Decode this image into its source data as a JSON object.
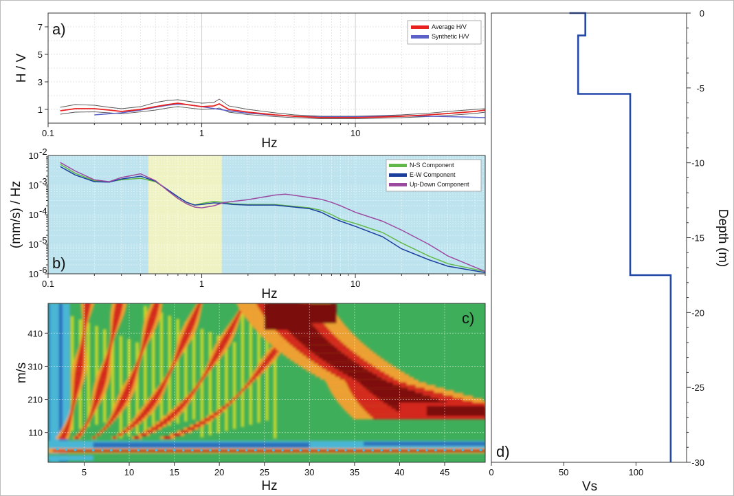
{
  "chart_data": [
    {
      "id": "a",
      "type": "line",
      "panel_label": "a)",
      "xlabel": "Hz",
      "ylabel": "H / V",
      "xscale": "log",
      "xlim": [
        0.1,
        70
      ],
      "ylim": [
        0,
        8
      ],
      "x_tick_labels": [
        "0.1",
        "1",
        "10"
      ],
      "x_tick_values": [
        0.1,
        1,
        10
      ],
      "y_tick_labels": [
        "1",
        "3",
        "5",
        "7"
      ],
      "y_tick_values": [
        1,
        3,
        5,
        7
      ],
      "grid": true,
      "legend_position": "top-right",
      "series": [
        {
          "name": "Average H/V",
          "color": "#e8201e",
          "x": [
            0.12,
            0.15,
            0.2,
            0.25,
            0.3,
            0.4,
            0.5,
            0.6,
            0.7,
            0.8,
            1.0,
            1.2,
            1.3,
            1.5,
            2.0,
            3.0,
            4.0,
            6.0,
            8.0,
            10,
            15,
            20,
            30,
            40,
            60,
            70
          ],
          "y": [
            0.9,
            1.05,
            1.05,
            0.95,
            0.85,
            1.0,
            1.2,
            1.35,
            1.45,
            1.35,
            1.2,
            1.25,
            1.4,
            1.0,
            0.8,
            0.6,
            0.5,
            0.4,
            0.4,
            0.4,
            0.45,
            0.5,
            0.6,
            0.7,
            0.85,
            0.95
          ]
        },
        {
          "name": "",
          "color": "#555555",
          "x": [
            0.12,
            0.15,
            0.2,
            0.25,
            0.3,
            0.4,
            0.5,
            0.6,
            0.7,
            0.8,
            1.0,
            1.2,
            1.3,
            1.5,
            2.0,
            3.0,
            4.0,
            6.0,
            8.0,
            10,
            15,
            20,
            30,
            40,
            60,
            70
          ],
          "y": [
            1.15,
            1.35,
            1.3,
            1.15,
            1.05,
            1.2,
            1.5,
            1.65,
            1.7,
            1.6,
            1.45,
            1.5,
            1.75,
            1.25,
            1.0,
            0.75,
            0.6,
            0.5,
            0.5,
            0.5,
            0.55,
            0.6,
            0.72,
            0.85,
            1.0,
            1.05
          ]
        },
        {
          "name": "",
          "color": "#555555",
          "x": [
            0.12,
            0.15,
            0.2,
            0.25,
            0.3,
            0.4,
            0.5,
            0.6,
            0.7,
            0.8,
            1.0,
            1.2,
            1.3,
            1.5,
            2.0,
            3.0,
            4.0,
            6.0,
            8.0,
            10,
            15,
            20,
            30,
            40,
            60,
            70
          ],
          "y": [
            0.65,
            0.8,
            0.82,
            0.75,
            0.68,
            0.82,
            0.95,
            1.1,
            1.2,
            1.12,
            1.0,
            1.02,
            1.1,
            0.8,
            0.62,
            0.48,
            0.4,
            0.32,
            0.32,
            0.32,
            0.36,
            0.4,
            0.48,
            0.56,
            0.7,
            0.8
          ]
        },
        {
          "name": "Synthetic H/V",
          "color": "#5a62c8",
          "x": [
            0.2,
            0.3,
            0.4,
            0.5,
            0.6,
            0.7,
            0.8,
            1.0,
            1.3,
            1.6,
            2.0,
            3.0,
            4.0,
            6.0,
            10,
            15,
            20,
            30,
            50,
            70
          ],
          "y": [
            0.6,
            0.75,
            0.95,
            1.15,
            1.3,
            1.38,
            1.35,
            1.2,
            1.0,
            0.85,
            0.72,
            0.58,
            0.5,
            0.45,
            0.46,
            0.5,
            0.52,
            0.5,
            0.45,
            0.4
          ]
        }
      ]
    },
    {
      "id": "b",
      "type": "line",
      "panel_label": "b)",
      "xlabel": "Hz",
      "ylabel": "(mm/s) / Hz",
      "xscale": "log",
      "yscale": "log",
      "xlim": [
        0.1,
        70
      ],
      "ylim": [
        1e-06,
        0.01
      ],
      "x_tick_labels": [
        "0.1",
        "1",
        "10"
      ],
      "x_tick_values": [
        0.1,
        1,
        10
      ],
      "y_tick_labels": [
        {
          "base": "10",
          "exp": "-6"
        },
        {
          "base": "10",
          "exp": "-5"
        },
        {
          "base": "10",
          "exp": "-4"
        },
        {
          "base": "10",
          "exp": "-3"
        },
        {
          "base": "10",
          "exp": "-2"
        }
      ],
      "y_tick_values": [
        1e-06,
        1e-05,
        0.0001,
        0.001,
        0.01
      ],
      "background_color": "#bde3ef",
      "highlight_band": {
        "x": [
          0.45,
          1.35
        ],
        "color": "#eff3c4"
      },
      "grid": true,
      "legend_position": "top-right",
      "series": [
        {
          "name": "N-S Component",
          "color": "#62b84a",
          "x": [
            0.12,
            0.15,
            0.2,
            0.25,
            0.3,
            0.4,
            0.5,
            0.6,
            0.7,
            0.8,
            0.9,
            1.0,
            1.2,
            1.4,
            1.6,
            2.0,
            3.0,
            4.0,
            5.0,
            6.0,
            7.0,
            8.0,
            10,
            15,
            20,
            30,
            40,
            70
          ],
          "y": [
            0.005,
            0.0025,
            0.0014,
            0.0013,
            0.0015,
            0.0017,
            0.0013,
            0.0007,
            0.0004,
            0.00026,
            0.00021,
            0.00024,
            0.00028,
            0.00026,
            0.00023,
            0.00022,
            0.00022,
            0.00019,
            0.00017,
            0.00014,
            0.0001,
            7e-05,
            5e-05,
            2.5e-05,
            1.1e-05,
            4e-06,
            2.2e-06,
            1.2e-06
          ]
        },
        {
          "name": "E-W Component",
          "color": "#1b3e9c",
          "x": [
            0.12,
            0.15,
            0.2,
            0.25,
            0.3,
            0.4,
            0.5,
            0.6,
            0.7,
            0.8,
            0.9,
            1.0,
            1.2,
            1.4,
            1.6,
            2.0,
            3.0,
            4.0,
            5.0,
            6.0,
            7.0,
            8.0,
            10,
            15,
            20,
            30,
            40,
            70
          ],
          "y": [
            0.0042,
            0.0022,
            0.0013,
            0.00125,
            0.0016,
            0.002,
            0.00135,
            0.0007,
            0.0004,
            0.00026,
            0.00021,
            0.00022,
            0.00025,
            0.00024,
            0.00022,
            0.00021,
            0.00021,
            0.00018,
            0.00016,
            0.00012,
            8e-05,
            6e-05,
            4e-05,
            1.8e-05,
            7e-06,
            3e-06,
            1.8e-06,
            1.1e-06
          ]
        },
        {
          "name": "Up-Down Component",
          "color": "#9b4aa0",
          "x": [
            0.12,
            0.15,
            0.2,
            0.25,
            0.3,
            0.4,
            0.5,
            0.6,
            0.7,
            0.8,
            0.9,
            1.0,
            1.2,
            1.4,
            1.6,
            2.0,
            3.0,
            3.5,
            4.0,
            5.0,
            6.0,
            7.0,
            8.0,
            10,
            15,
            20,
            30,
            40,
            70
          ],
          "y": [
            0.0058,
            0.003,
            0.0015,
            0.0013,
            0.0018,
            0.0024,
            0.0014,
            0.00065,
            0.00035,
            0.00023,
            0.00018,
            0.00017,
            0.0002,
            0.00026,
            0.00028,
            0.00032,
            0.00046,
            0.00049,
            0.00045,
            0.00038,
            0.00033,
            0.00026,
            0.0002,
            0.00012,
            6e-05,
            3e-05,
            1e-05,
            4e-06,
            1.2e-06
          ]
        }
      ]
    },
    {
      "id": "c",
      "type": "heatmap",
      "panel_label": "c)",
      "xlabel": "Hz",
      "ylabel": "m/s",
      "xlim": [
        1,
        49.5
      ],
      "ylim": [
        20,
        500
      ],
      "x_tick_labels": [
        "5",
        "10",
        "15",
        "20",
        "25",
        "30",
        "35",
        "40",
        "45"
      ],
      "x_tick_values": [
        5,
        10,
        15,
        20,
        25,
        30,
        35,
        40,
        45
      ],
      "y_tick_labels": [
        "110",
        "210",
        "310",
        "410"
      ],
      "y_tick_values": [
        110,
        210,
        310,
        410
      ],
      "grid": true,
      "colormap": [
        "#2a6fbb",
        "#4ab6d6",
        "#3fae5a",
        "#c2d62f",
        "#f0a030",
        "#d3271c",
        "#7c0d0d"
      ],
      "picked_curve": {
        "color": "#46b9e8",
        "x": [
          2,
          3,
          4,
          5,
          6,
          7,
          8,
          9,
          10,
          11,
          12,
          13,
          14,
          15,
          16,
          17,
          18,
          19,
          20,
          21,
          22,
          23,
          24,
          25,
          26,
          27,
          28,
          29,
          30,
          31,
          32,
          33,
          34,
          35,
          36,
          37,
          38,
          39,
          40,
          41,
          42,
          43,
          44,
          45,
          46,
          47,
          48,
          49
        ],
        "y": [
          60,
          58,
          57,
          56,
          56,
          56,
          56,
          56,
          56,
          56,
          56,
          56,
          56,
          56,
          56,
          56,
          56,
          56,
          56,
          56,
          56,
          56,
          56,
          56,
          56,
          56,
          56,
          56,
          56,
          56,
          56,
          56,
          56,
          56,
          56,
          56,
          56,
          56,
          56,
          56,
          56,
          56,
          56,
          56,
          57,
          57,
          57,
          57
        ]
      }
    },
    {
      "id": "d",
      "type": "line",
      "panel_label": "d)",
      "xlabel": "Vs",
      "ylabel": "Depth (m)",
      "xlim": [
        0,
        135
      ],
      "ylim": [
        -30,
        0
      ],
      "x_tick_labels": [
        "0",
        "50",
        "100"
      ],
      "x_tick_values": [
        0,
        50,
        100
      ],
      "y_tick_labels": [
        "0",
        "-5",
        "-10",
        "-15",
        "-20",
        "-25",
        "-30"
      ],
      "y_tick_values": [
        0,
        -5,
        -10,
        -15,
        -20,
        -25,
        -30
      ],
      "series": [
        {
          "name": "",
          "color": "#2448a8",
          "vs": [
            54,
            65,
            65,
            60,
            60,
            96,
            96,
            124,
            124
          ],
          "depth": [
            0,
            0,
            -1.5,
            -1.5,
            -5.4,
            -5.4,
            -17.5,
            -17.5,
            -30
          ]
        }
      ]
    }
  ]
}
